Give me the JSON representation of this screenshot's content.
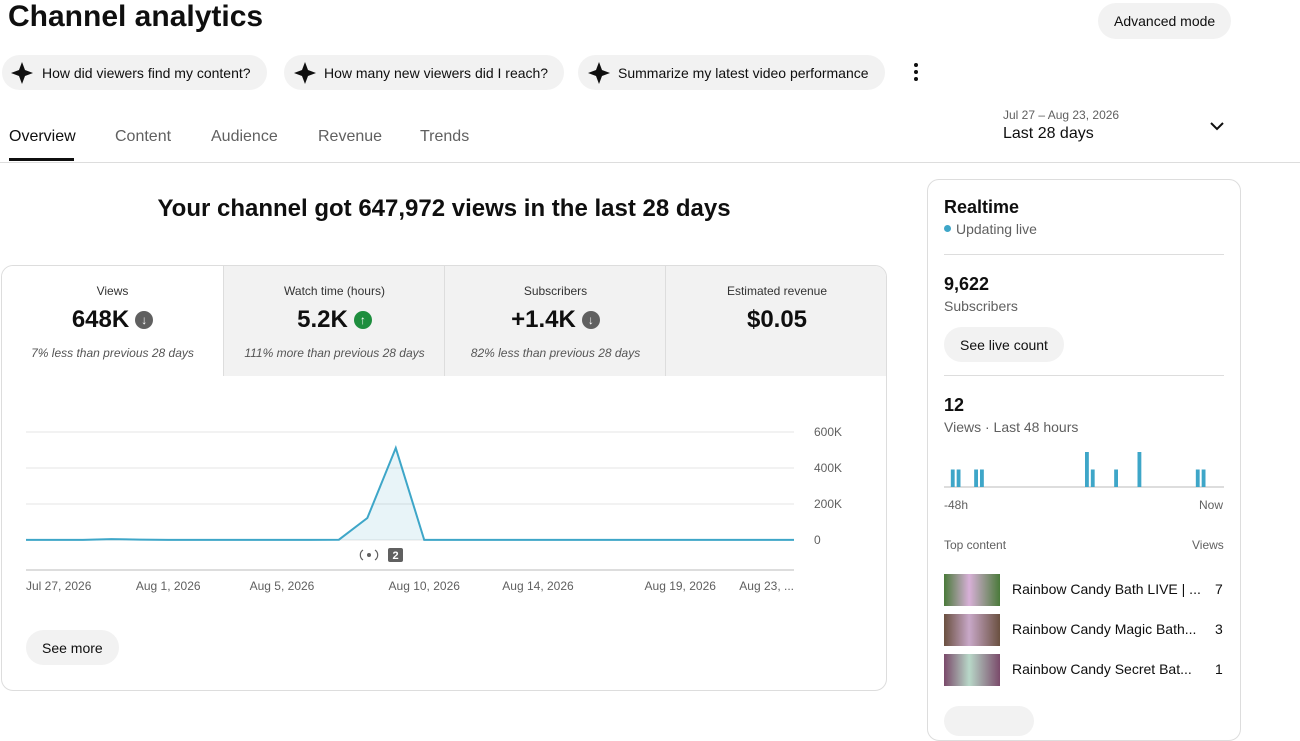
{
  "header": {
    "title": "Channel analytics",
    "advanced_mode": "Advanced mode"
  },
  "prompts": [
    "How did viewers find my content?",
    "How many new viewers did I reach?",
    "Summarize my latest video performance"
  ],
  "tabs": [
    "Overview",
    "Content",
    "Audience",
    "Revenue",
    "Trends"
  ],
  "date_range": {
    "dates": "Jul 27 – Aug 23, 2026",
    "label": "Last 28 days"
  },
  "headline": "Your channel got 647,972 views in the last 28 days",
  "metrics": [
    {
      "label": "Views",
      "value": "648K",
      "trend": "down",
      "change": "7% less than previous 28 days"
    },
    {
      "label": "Watch time (hours)",
      "value": "5.2K",
      "trend": "up",
      "change": "111% more than previous 28 days"
    },
    {
      "label": "Subscribers",
      "value": "+1.4K",
      "trend": "down",
      "change": "82% less than previous 28 days"
    },
    {
      "label": "Estimated revenue",
      "value": "$0.05"
    }
  ],
  "chart_data": {
    "type": "line",
    "color": "#3ea6c8",
    "categories": [
      "Jul 27, 2026",
      null,
      null,
      null,
      null,
      "Aug 1, 2026",
      null,
      null,
      null,
      "Aug 5, 2026",
      null,
      null,
      null,
      null,
      "Aug 10, 2026",
      null,
      null,
      null,
      "Aug 14, 2026",
      null,
      null,
      null,
      null,
      "Aug 19, 2026",
      null,
      null,
      null,
      "Aug 23, ..."
    ],
    "values": [
      1000,
      1000,
      1000,
      5000,
      2000,
      1000,
      1000,
      1000,
      1000,
      1000,
      1000,
      1500,
      122000,
      511000,
      500,
      500,
      500,
      500,
      500,
      500,
      500,
      500,
      500,
      500,
      500,
      500,
      500,
      500
    ],
    "ylim": [
      0,
      600000
    ],
    "yticks": [
      0,
      {
        "value": 200000,
        "label": "200K"
      },
      {
        "value": 400000,
        "label": "400K"
      },
      {
        "value": 600000,
        "label": "600K"
      }
    ],
    "grid": true,
    "annotation": "2"
  },
  "see_more": "See more",
  "realtime": {
    "title": "Realtime",
    "status": "Updating live",
    "subscribers": {
      "value": "9,622",
      "label": "Subscribers"
    },
    "see_live": "See live count",
    "views": {
      "value": "12",
      "label": "Views · Last 48 hours"
    },
    "chart_data": {
      "type": "bar",
      "color": "#3ea6c8",
      "values": [
        0,
        1,
        1,
        0,
        0,
        1,
        1,
        0,
        0,
        0,
        0,
        0,
        0,
        0,
        0,
        0,
        0,
        0,
        0,
        0,
        0,
        0,
        0,
        0,
        2,
        1,
        0,
        0,
        0,
        1,
        0,
        0,
        0,
        2,
        0,
        0,
        0,
        0,
        0,
        0,
        0,
        0,
        0,
        1,
        1,
        0,
        0,
        0
      ],
      "start": "-48h",
      "end": "Now"
    },
    "top_content": {
      "title": "Top content",
      "views_label": "Views",
      "items": [
        {
          "title": "Rainbow Candy Bath LIVE | ...",
          "views": "7"
        },
        {
          "title": "Rainbow Candy Magic Bath...",
          "views": "3"
        },
        {
          "title": "Rainbow Candy Secret Bat...",
          "views": "1"
        }
      ]
    }
  }
}
